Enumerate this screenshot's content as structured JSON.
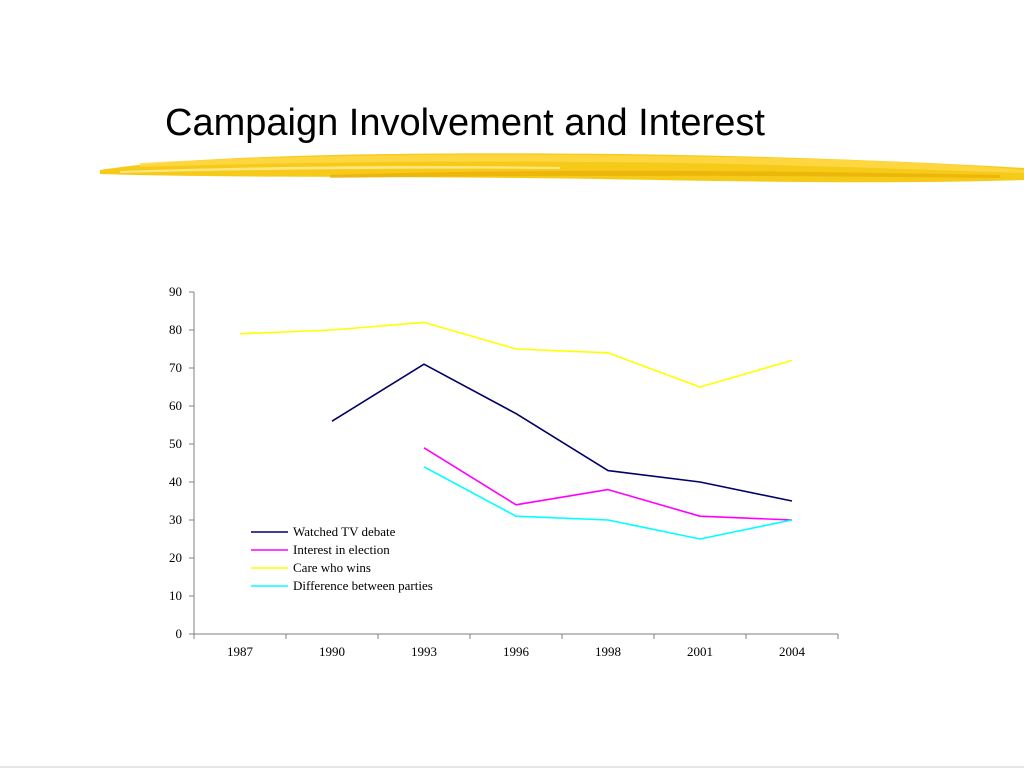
{
  "slide": {
    "title": "Campaign Involvement and Interest",
    "accent_color": "#f5c400"
  },
  "chart_data": {
    "type": "line",
    "categories": [
      "1987",
      "1990",
      "1993",
      "1996",
      "1998",
      "2001",
      "2004"
    ],
    "ylim": [
      0,
      90
    ],
    "yticks": [
      0,
      10,
      20,
      30,
      40,
      50,
      60,
      70,
      80,
      90
    ],
    "grid": false,
    "legend_position": "lower-left",
    "series": [
      {
        "name": "Watched TV debate",
        "color": "#000066",
        "values": [
          null,
          56,
          71,
          58,
          43,
          40,
          35
        ]
      },
      {
        "name": "Interest in election",
        "color": "#ff00ff",
        "values": [
          null,
          null,
          49,
          34,
          38,
          31,
          30
        ]
      },
      {
        "name": "Care who wins",
        "color": "#ffff00",
        "values": [
          79,
          80,
          82,
          75,
          74,
          65,
          72
        ]
      },
      {
        "name": "Difference between parties",
        "color": "#00ffff",
        "values": [
          null,
          null,
          44,
          31,
          30,
          25,
          30
        ]
      }
    ]
  }
}
